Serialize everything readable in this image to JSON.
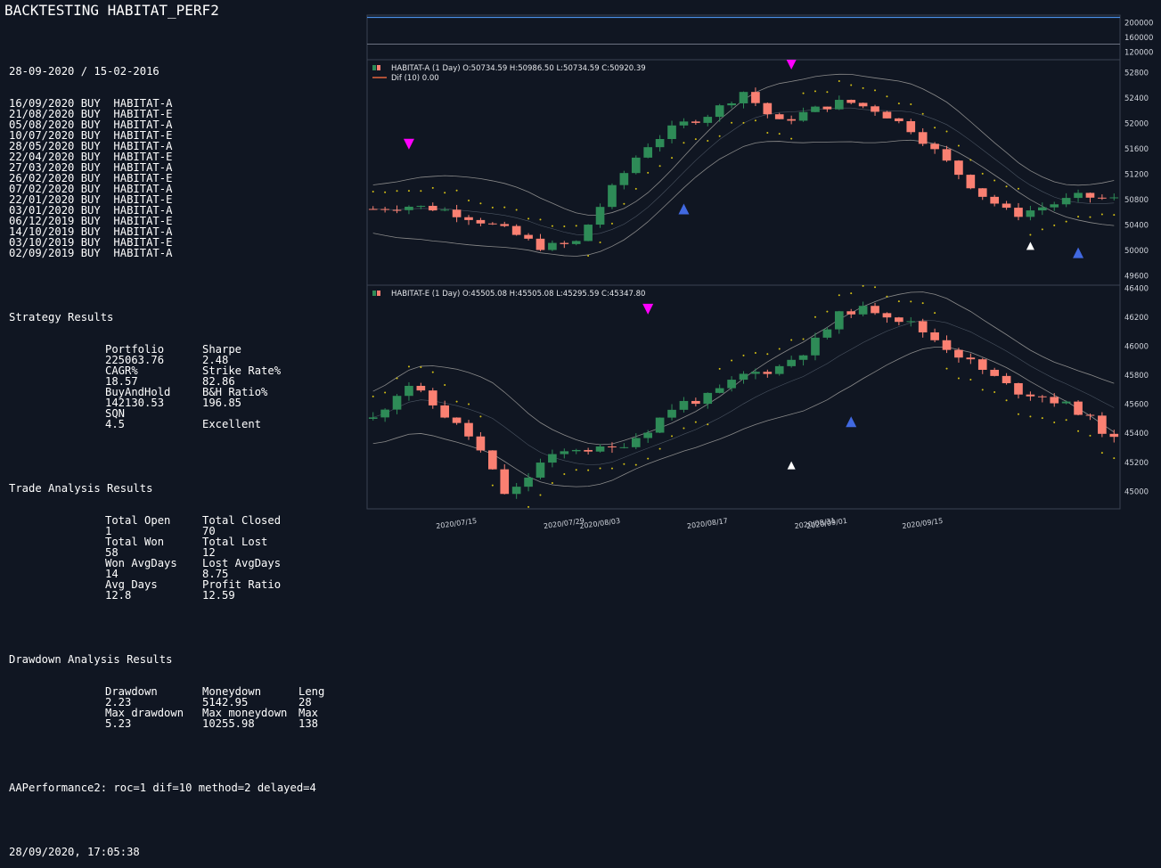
{
  "title": "BACKTESTING HABITAT_PERF2",
  "date_range": "28-09-2020 / 15-02-2016",
  "trades": [
    {
      "date": "16/09/2020",
      "side": "BUY",
      "symbol": "HABITAT-A"
    },
    {
      "date": "21/08/2020",
      "side": "BUY",
      "symbol": "HABITAT-E"
    },
    {
      "date": "05/08/2020",
      "side": "BUY",
      "symbol": "HABITAT-A"
    },
    {
      "date": "10/07/2020",
      "side": "BUY",
      "symbol": "HABITAT-E"
    },
    {
      "date": "28/05/2020",
      "side": "BUY",
      "symbol": "HABITAT-A"
    },
    {
      "date": "22/04/2020",
      "side": "BUY",
      "symbol": "HABITAT-E"
    },
    {
      "date": "27/03/2020",
      "side": "BUY",
      "symbol": "HABITAT-A"
    },
    {
      "date": "26/02/2020",
      "side": "BUY",
      "symbol": "HABITAT-E"
    },
    {
      "date": "07/02/2020",
      "side": "BUY",
      "symbol": "HABITAT-A"
    },
    {
      "date": "22/01/2020",
      "side": "BUY",
      "symbol": "HABITAT-E"
    },
    {
      "date": "03/01/2020",
      "side": "BUY",
      "symbol": "HABITAT-A"
    },
    {
      "date": "06/12/2019",
      "side": "BUY",
      "symbol": "HABITAT-E"
    },
    {
      "date": "14/10/2019",
      "side": "BUY",
      "symbol": "HABITAT-A"
    },
    {
      "date": "03/10/2019",
      "side": "BUY",
      "symbol": "HABITAT-E"
    },
    {
      "date": "02/09/2019",
      "side": "BUY",
      "symbol": "HABITAT-A"
    }
  ],
  "strategy": {
    "heading": "Strategy Results",
    "rows": [
      [
        "Portfolio",
        "Sharpe",
        ""
      ],
      [
        "225063.76",
        "2.48",
        ""
      ],
      [
        "CAGR%",
        "Strike Rate%",
        ""
      ],
      [
        "18.57",
        "82.86",
        ""
      ],
      [
        "BuyAndHold",
        "B&H Ratio%",
        ""
      ],
      [
        "142130.53",
        "196.85",
        ""
      ],
      [
        "SQN",
        "",
        ""
      ],
      [
        "4.5",
        "Excellent",
        ""
      ]
    ]
  },
  "trade_analysis": {
    "heading": "Trade Analysis Results",
    "rows": [
      [
        "Total Open",
        "Total Closed",
        ""
      ],
      [
        "1",
        "70",
        ""
      ],
      [
        "Total Won",
        "Total Lost",
        ""
      ],
      [
        "58",
        "12",
        ""
      ],
      [
        "Won AvgDays",
        "Lost AvgDays",
        ""
      ],
      [
        "14",
        "8.75",
        ""
      ],
      [
        "Avg Days",
        "Profit Ratio",
        ""
      ],
      [
        "12.8",
        "12.59",
        ""
      ]
    ]
  },
  "drawdown": {
    "heading": "Drawdown Analysis Results",
    "rows": [
      [
        "Drawdown",
        "Moneydown",
        "Leng"
      ],
      [
        "2.23",
        "5142.95",
        "28"
      ],
      [
        "Max drawdown",
        "Max moneydown",
        "Max"
      ],
      [
        "5.23",
        "10255.98",
        "138"
      ]
    ]
  },
  "params": "AAPerformance2: roc=1 dif=10 method=2 delayed=4",
  "timestamp": "28/09/2020, 17:05:38",
  "colors": {
    "background": "#101622",
    "up": "#2e8b57",
    "down": "#fa8072",
    "sar": "#d4c014",
    "band": "#8a8a8a",
    "sell_marker": "#ff00ff",
    "buy_marker": "#4169e1",
    "exit_marker": "#ffffff",
    "value_line": "#4a8fe7"
  },
  "chart_data": [
    {
      "type": "line",
      "name": "portfolio",
      "yticks": [
        "200000",
        "160000",
        "120000"
      ],
      "ylim": [
        100000,
        220000
      ],
      "series": [
        {
          "values": [
            214000,
            214000
          ]
        },
        {
          "values": [
            142000,
            142000
          ]
        }
      ]
    },
    {
      "type": "candlestick",
      "name": "HABITAT-A",
      "legend": "HABITAT-A (1 Day) O:50734.59 H:50986.50 L:50734.59 C:50920.39",
      "legend2": "Dif (10) 0.00",
      "yticks": [
        "52800",
        "52400",
        "52000",
        "51600",
        "51200",
        "50800",
        "50400",
        "50000",
        "49600"
      ],
      "ylim": [
        49450,
        53000
      ],
      "markers": [
        {
          "type": "sell",
          "index": 3,
          "price": 51670
        },
        {
          "type": "buy",
          "index": 26,
          "price": 50650
        },
        {
          "type": "sell",
          "index": 35,
          "price": 52930
        },
        {
          "type": "exit",
          "index": 55,
          "price": 50070
        },
        {
          "type": "buy",
          "index": 59,
          "price": 49960
        }
      ]
    },
    {
      "type": "candlestick",
      "name": "HABITAT-E",
      "legend": "HABITAT-E (1 Day) O:45505.08 H:45505.08 L:45295.59 C:45347.80",
      "yticks": [
        "46400",
        "46200",
        "46000",
        "45800",
        "45600",
        "45400",
        "45200",
        "45000"
      ],
      "ylim": [
        44880,
        46420
      ],
      "markers": [
        {
          "type": "sell",
          "index": 23,
          "price": 46255
        },
        {
          "type": "exit",
          "index": 35,
          "price": 45180
        },
        {
          "type": "buy",
          "index": 40,
          "price": 45480
        }
      ]
    }
  ],
  "xticks": [
    "2020/07/15",
    "2020/07/29",
    "2020/08/03",
    "2020/08/17",
    "2020/08/31",
    "2020/09/01",
    "2020/09/15"
  ]
}
